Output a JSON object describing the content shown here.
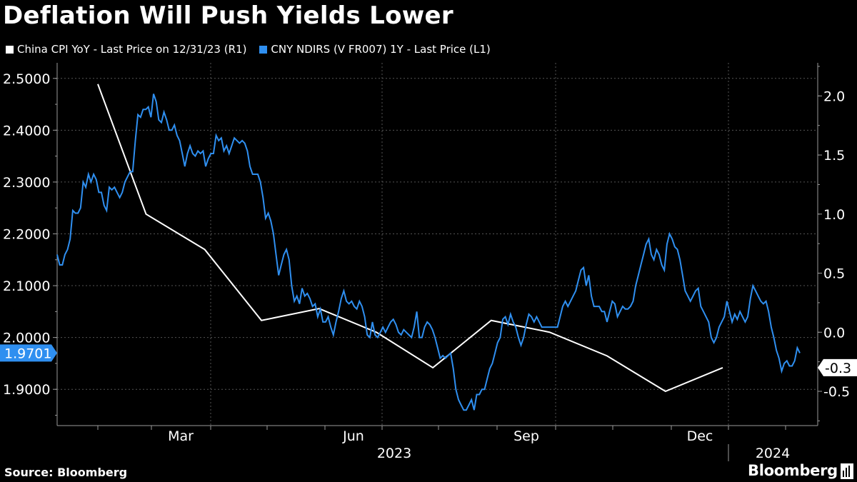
{
  "title": "Deflation Will Push Yields Lower",
  "legend": [
    {
      "label": "China CPI YoY - Last Price on 12/31/23 (R1)",
      "color": "#ffffff"
    },
    {
      "label": "CNY NDIRS (V FR007) 1Y - Last Price (L1)",
      "color": "#2f8ff0"
    }
  ],
  "source": "Source: Bloomberg",
  "brand": "Bloomberg",
  "chart_data": {
    "type": "line",
    "title": "Deflation Will Push Yields Lower",
    "x_tick_labels": [
      "Mar",
      "Jun",
      "Sep",
      "Dec"
    ],
    "x_year_labels": [
      "2023",
      "2024"
    ],
    "left_axis": {
      "min": 1.83,
      "max": 2.53,
      "ticks": [
        "2.5000",
        "2.4000",
        "2.3000",
        "2.2000",
        "2.1000",
        "2.0000",
        "1.9000"
      ]
    },
    "right_axis": {
      "min": -0.79,
      "max": 2.28,
      "ticks": [
        "2.0",
        "1.5",
        "1.0",
        "0.5",
        "0.0",
        "-0.5"
      ]
    },
    "last_value_left": "1.9701",
    "last_value_right": "-0.3",
    "series": [
      {
        "name": "China CPI YoY - Last Price on 12/31/23 (R1)",
        "axis": "right",
        "color": "#ffffff",
        "x_index": [
          0,
          0.9,
          1.9,
          2.9,
          3.9,
          4.9,
          5.9,
          6.9,
          7.9,
          8.9,
          9.9,
          10.9,
          11.4
        ],
        "values": [
          2.1,
          1.0,
          0.7,
          0.1,
          0.2,
          0.0,
          -0.3,
          0.1,
          0.0,
          -0.2,
          -0.5,
          -0.3,
          -0.3
        ]
      },
      {
        "name": "CNY NDIRS (V FR007) 1Y - Last Price (L1)",
        "axis": "left",
        "color": "#2f8ff0",
        "x_day_start": -22,
        "values": [
          2.16,
          2.14,
          2.14,
          2.16,
          2.17,
          2.19,
          2.245,
          2.24,
          2.24,
          2.25,
          2.3,
          2.29,
          2.315,
          2.3,
          2.315,
          2.305,
          2.28,
          2.28,
          2.255,
          2.245,
          2.29,
          2.285,
          2.29,
          2.28,
          2.27,
          2.28,
          2.3,
          2.31,
          2.32,
          2.32,
          2.38,
          2.43,
          2.425,
          2.44,
          2.44,
          2.445,
          2.425,
          2.47,
          2.455,
          2.42,
          2.415,
          2.435,
          2.42,
          2.4,
          2.4,
          2.41,
          2.39,
          2.38,
          2.355,
          2.33,
          2.355,
          2.37,
          2.355,
          2.35,
          2.36,
          2.355,
          2.36,
          2.33,
          2.345,
          2.355,
          2.355,
          2.39,
          2.38,
          2.385,
          2.36,
          2.37,
          2.355,
          2.37,
          2.385,
          2.38,
          2.375,
          2.38,
          2.375,
          2.36,
          2.33,
          2.315,
          2.315,
          2.315,
          2.3,
          2.27,
          2.23,
          2.24,
          2.225,
          2.2,
          2.16,
          2.12,
          2.14,
          2.16,
          2.17,
          2.15,
          2.1,
          2.07,
          2.08,
          2.065,
          2.095,
          2.08,
          2.085,
          2.075,
          2.06,
          2.065,
          2.04,
          2.055,
          2.03,
          2.03,
          2.04,
          2.02,
          2.005,
          2.03,
          2.05,
          2.075,
          2.09,
          2.07,
          2.065,
          2.07,
          2.06,
          2.055,
          2.07,
          2.06,
          2.04,
          2.005,
          2.0,
          2.03,
          2.005,
          2.0,
          2.01,
          2.02,
          2.01,
          2.02,
          2.03,
          2.035,
          2.025,
          2.01,
          2.005,
          2.015,
          2.01,
          2.005,
          2.0,
          2.02,
          2.05,
          2.0,
          2.0,
          2.02,
          2.03,
          2.025,
          2.015,
          2.0,
          1.98,
          1.96,
          1.965,
          1.96,
          1.965,
          1.97,
          1.94,
          1.9,
          1.88,
          1.87,
          1.86,
          1.86,
          1.87,
          1.88,
          1.86,
          1.89,
          1.89,
          1.9,
          1.9,
          1.92,
          1.94,
          1.95,
          1.97,
          1.99,
          2.0,
          2.035,
          2.04,
          2.025,
          2.045,
          2.03,
          2.02,
          2.0,
          1.985,
          2.0,
          2.025,
          2.045,
          2.04,
          2.03,
          2.04,
          2.03,
          2.02,
          2.02,
          2.02,
          2.02,
          2.02,
          2.02,
          2.02,
          2.04,
          2.06,
          2.07,
          2.06,
          2.07,
          2.08,
          2.09,
          2.11,
          2.13,
          2.135,
          2.1,
          2.12,
          2.08,
          2.06,
          2.06,
          2.06,
          2.05,
          2.05,
          2.03,
          2.05,
          2.07,
          2.065,
          2.04,
          2.05,
          2.06,
          2.055,
          2.055,
          2.06,
          2.07,
          2.1,
          2.12,
          2.14,
          2.16,
          2.18,
          2.19,
          2.16,
          2.15,
          2.17,
          2.16,
          2.14,
          2.13,
          2.18,
          2.2,
          2.19,
          2.175,
          2.17,
          2.15,
          2.12,
          2.09,
          2.08,
          2.07,
          2.08,
          2.09,
          2.095,
          2.06,
          2.05,
          2.04,
          2.03,
          2.0,
          1.99,
          2.0,
          2.02,
          2.03,
          2.04,
          2.07,
          2.05,
          2.03,
          2.045,
          2.035,
          2.05,
          2.04,
          2.03,
          2.04,
          2.075,
          2.1,
          2.09,
          2.08,
          2.07,
          2.065,
          2.07,
          2.05,
          2.02,
          2.0,
          1.975,
          1.96,
          1.935,
          1.95,
          1.955,
          1.945,
          1.945,
          1.955,
          1.98,
          1.97
        ]
      }
    ]
  }
}
